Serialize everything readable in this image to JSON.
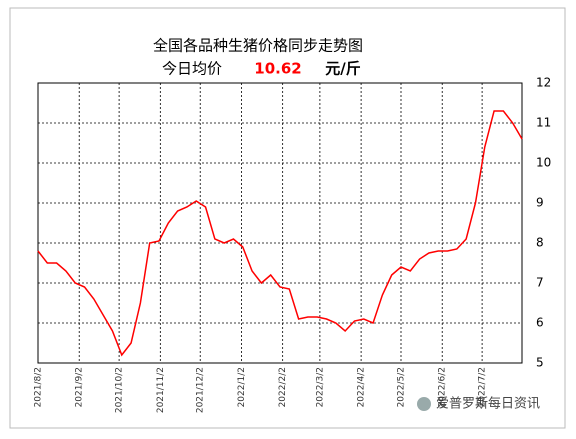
{
  "chart_data": {
    "type": "line",
    "title": "全国各品种生猪价格同步走势图",
    "subtitle_label": "今日均价",
    "today_value": "10.62",
    "unit": "元/斤",
    "watermark": "爱普罗斯每日资讯",
    "x": [
      "2021/8/2",
      "2021/8/9",
      "2021/8/16",
      "2021/8/23",
      "2021/8/30",
      "2021/9/6",
      "2021/9/13",
      "2021/9/20",
      "2021/9/27",
      "2021/10/4",
      "2021/10/11",
      "2021/10/18",
      "2021/10/25",
      "2021/11/1",
      "2021/11/8",
      "2021/11/15",
      "2021/11/22",
      "2021/11/29",
      "2021/12/6",
      "2021/12/13",
      "2021/12/20",
      "2021/12/27",
      "2022/1/3",
      "2022/1/10",
      "2022/1/17",
      "2022/1/24",
      "2022/1/31",
      "2022/2/7",
      "2022/2/14",
      "2022/2/21",
      "2022/2/28",
      "2022/3/7",
      "2022/3/14",
      "2022/3/21",
      "2022/3/28",
      "2022/4/4",
      "2022/4/11",
      "2022/4/18",
      "2022/4/25",
      "2022/5/2",
      "2022/5/9",
      "2022/5/16",
      "2022/5/23",
      "2022/5/30",
      "2022/6/6",
      "2022/6/13",
      "2022/6/20",
      "2022/6/27",
      "2022/7/4",
      "2022/7/11",
      "2022/7/18",
      "2022/7/25",
      "2022/8/1"
    ],
    "series": [
      {
        "name": "今日均价",
        "color": "#ff0000",
        "values": [
          7.8,
          7.5,
          7.5,
          7.3,
          7.0,
          6.9,
          6.6,
          6.2,
          5.8,
          5.2,
          5.5,
          6.5,
          8.0,
          8.05,
          8.5,
          8.8,
          8.9,
          9.05,
          8.9,
          8.1,
          8.0,
          8.1,
          7.9,
          7.3,
          7.0,
          7.2,
          6.9,
          6.85,
          6.1,
          6.15,
          6.15,
          6.1,
          6.0,
          5.8,
          6.05,
          6.1,
          6.0,
          6.7,
          7.2,
          7.4,
          7.3,
          7.6,
          7.75,
          7.8,
          7.8,
          7.85,
          8.1,
          9.0,
          10.4,
          11.3,
          11.3,
          11.0,
          10.6
        ]
      }
    ],
    "xlim": [
      "2021/8/2",
      "2022/8/1"
    ],
    "xticks": [
      "2021/8/2",
      "2021/9/2",
      "2021/10/2",
      "2021/11/2",
      "2021/12/2",
      "2022/1/2",
      "2022/2/2",
      "2022/3/2",
      "2022/4/2",
      "2022/5/2",
      "2022/6/2",
      "2022/7/2"
    ],
    "ylim": [
      5,
      12
    ],
    "yticks": [
      5,
      6,
      7,
      8,
      9,
      10,
      11,
      12
    ],
    "grid": true
  }
}
